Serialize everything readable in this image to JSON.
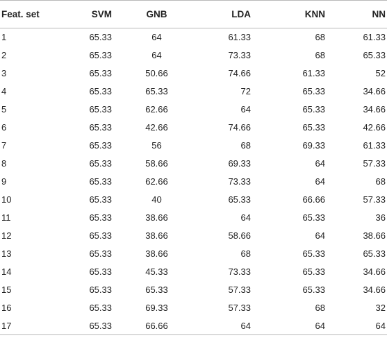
{
  "table": {
    "columns": [
      "Feat. set",
      "SVM",
      "GNB",
      "LDA",
      "KNN",
      "NN"
    ],
    "rows": [
      [
        "1",
        "65.33",
        "64",
        "61.33",
        "68",
        "61.33"
      ],
      [
        "2",
        "65.33",
        "64",
        "73.33",
        "68",
        "65.33"
      ],
      [
        "3",
        "65.33",
        "50.66",
        "74.66",
        "61.33",
        "52"
      ],
      [
        "4",
        "65.33",
        "65.33",
        "72",
        "65.33",
        "34.66"
      ],
      [
        "5",
        "65.33",
        "62.66",
        "64",
        "65.33",
        "34.66"
      ],
      [
        "6",
        "65.33",
        "42.66",
        "74.66",
        "65.33",
        "42.66"
      ],
      [
        "7",
        "65.33",
        "56",
        "68",
        "69.33",
        "61.33"
      ],
      [
        "8",
        "65.33",
        "58.66",
        "69.33",
        "64",
        "57.33"
      ],
      [
        "9",
        "65.33",
        "62.66",
        "73.33",
        "64",
        "68"
      ],
      [
        "10",
        "65.33",
        "40",
        "65.33",
        "66.66",
        "57.33"
      ],
      [
        "11",
        "65.33",
        "38.66",
        "64",
        "65.33",
        "36"
      ],
      [
        "12",
        "65.33",
        "38.66",
        "58.66",
        "64",
        "38.66"
      ],
      [
        "13",
        "65.33",
        "38.66",
        "68",
        "65.33",
        "65.33"
      ],
      [
        "14",
        "65.33",
        "45.33",
        "73.33",
        "65.33",
        "34.66"
      ],
      [
        "15",
        "65.33",
        "65.33",
        "57.33",
        "65.33",
        "34.66"
      ],
      [
        "16",
        "65.33",
        "69.33",
        "57.33",
        "68",
        "32"
      ],
      [
        "17",
        "65.33",
        "66.66",
        "64",
        "64",
        "64"
      ]
    ]
  }
}
